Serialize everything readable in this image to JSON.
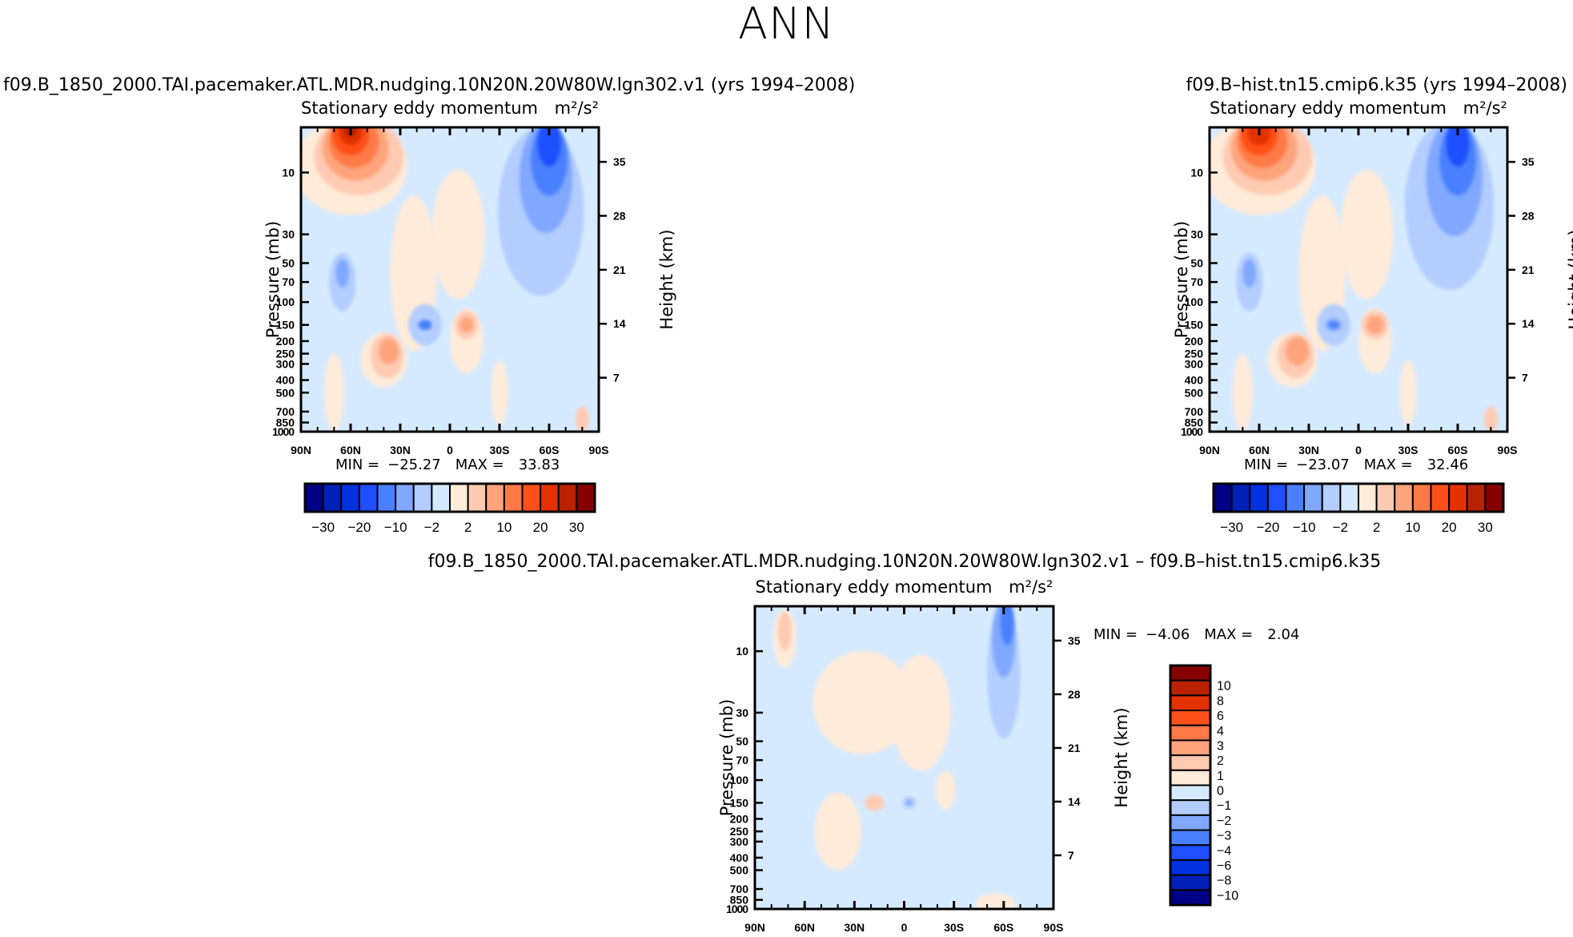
{
  "title": "ANN",
  "chart_data": [
    {
      "type": "heatmap",
      "subtitle": "f09.B_1850_2000.TAI.pacemaker.ATL.MDR.nudging.10N20N.20W80W.lgn302.v1 (yrs 1994–2008)",
      "title": "Stationary eddy momentum",
      "units": "m²/s²",
      "xlabel": "",
      "ylabel": "Pressure (mb)",
      "y2label": "Height (km)",
      "x_ticks": [
        "90N",
        "60N",
        "30N",
        "0",
        "30S",
        "60S",
        "90S"
      ],
      "y_ticks": [
        "10",
        "30",
        "50",
        "70",
        "100",
        "150",
        "200",
        "250",
        "300",
        "400",
        "500",
        "700",
        "850",
        "1000"
      ],
      "y2_ticks": [
        "35",
        "28",
        "21",
        "14",
        "7"
      ],
      "min_label": "MIN =",
      "min": "−25.27",
      "max_label": "MAX =",
      "max": "33.83",
      "colorbar": {
        "levels": [
          -30,
          -25,
          -20,
          -15,
          -10,
          -5,
          -2,
          0,
          2,
          5,
          10,
          15,
          20,
          25,
          30
        ],
        "labels": [
          "−30",
          "−20",
          "−10",
          "−2",
          "2",
          "10",
          "20",
          "30"
        ],
        "colors": [
          "#000087",
          "#0020b8",
          "#0032e0",
          "#1f4fff",
          "#4a80ff",
          "#80a8ff",
          "#b3cdff",
          "#d6eaff",
          "#ffebd9",
          "#ffcab2",
          "#ffa47c",
          "#ff7a46",
          "#ff5019",
          "#e33200",
          "#b82200",
          "#870000"
        ]
      }
    },
    {
      "type": "heatmap",
      "subtitle": "f09.B–hist.tn15.cmip6.k35 (yrs 1994–2008)",
      "title": "Stationary eddy momentum",
      "units": "m²/s²",
      "xlabel": "",
      "ylabel": "Pressure (mb)",
      "y2label": "Height (km)",
      "x_ticks": [
        "90N",
        "60N",
        "30N",
        "0",
        "30S",
        "60S",
        "90S"
      ],
      "y_ticks": [
        "10",
        "30",
        "50",
        "70",
        "100",
        "150",
        "200",
        "250",
        "300",
        "400",
        "500",
        "700",
        "850",
        "1000"
      ],
      "y2_ticks": [
        "35",
        "28",
        "21",
        "14",
        "7"
      ],
      "min_label": "MIN =",
      "min": "−23.07",
      "max_label": "MAX =",
      "max": "32.46",
      "colorbar": {
        "levels": [
          -30,
          -25,
          -20,
          -15,
          -10,
          -5,
          -2,
          0,
          2,
          5,
          10,
          15,
          20,
          25,
          30
        ],
        "labels": [
          "−30",
          "−20",
          "−10",
          "−2",
          "2",
          "10",
          "20",
          "30"
        ],
        "colors": [
          "#000087",
          "#0020b8",
          "#0032e0",
          "#1f4fff",
          "#4a80ff",
          "#80a8ff",
          "#b3cdff",
          "#d6eaff",
          "#ffebd9",
          "#ffcab2",
          "#ffa47c",
          "#ff7a46",
          "#ff5019",
          "#e33200",
          "#b82200",
          "#870000"
        ]
      }
    },
    {
      "type": "heatmap",
      "subtitle": "f09.B_1850_2000.TAI.pacemaker.ATL.MDR.nudging.10N20N.20W80W.lgn302.v1 – f09.B–hist.tn15.cmip6.k35",
      "title": "Stationary eddy momentum",
      "units": "m²/s²",
      "xlabel": "",
      "ylabel": "Pressure (mb)",
      "y2label": "Height (km)",
      "x_ticks": [
        "90N",
        "60N",
        "30N",
        "0",
        "30S",
        "60S",
        "90S"
      ],
      "y_ticks": [
        "10",
        "30",
        "50",
        "70",
        "100",
        "150",
        "200",
        "250",
        "300",
        "400",
        "500",
        "700",
        "850",
        "1000"
      ],
      "y2_ticks": [
        "35",
        "28",
        "21",
        "14",
        "7"
      ],
      "min_label": "MIN =",
      "min": "−4.06",
      "max_label": "MAX =",
      "max": "2.04",
      "colorbar": {
        "levels": [
          10,
          8,
          6,
          4,
          3,
          2,
          1,
          0,
          -1,
          -2,
          -3,
          -4,
          -6,
          -8,
          -10
        ],
        "labels": [
          "10",
          "8",
          "6",
          "4",
          "3",
          "2",
          "1",
          "0",
          "−1",
          "−2",
          "−3",
          "−4",
          "−6",
          "−8",
          "−10"
        ],
        "colors": [
          "#870000",
          "#b82200",
          "#e33200",
          "#ff5019",
          "#ff7a46",
          "#ffa47c",
          "#ffcab2",
          "#ffebd9",
          "#d6eaff",
          "#b3cdff",
          "#80a8ff",
          "#4a80ff",
          "#1f4fff",
          "#0032e0",
          "#0020b8",
          "#000087"
        ]
      }
    }
  ]
}
